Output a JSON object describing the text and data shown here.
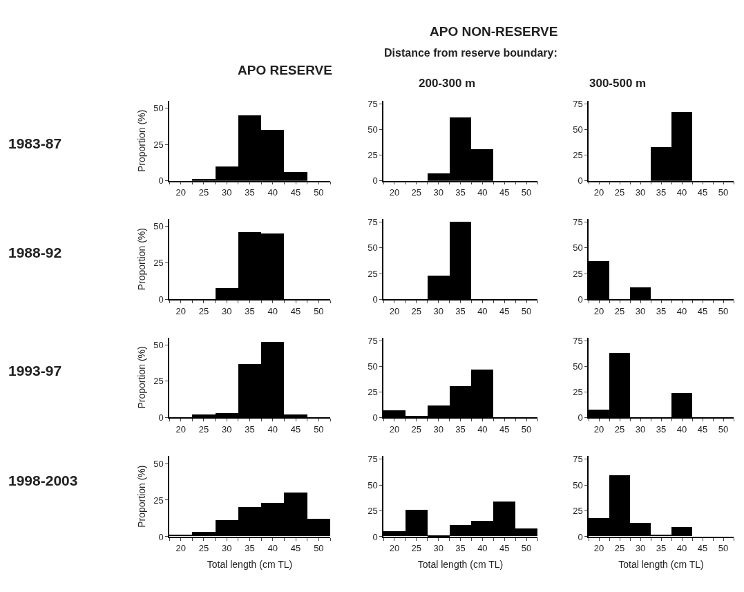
{
  "chart_data": [
    {
      "type": "histogram",
      "title": "APO RESERVE",
      "annotations": [
        "1983-87"
      ],
      "ylabel": "Proportion (%)",
      "bins": [
        17.5,
        22.5,
        27.5,
        32.5,
        37.5,
        42.5,
        47.5,
        52.5
      ],
      "values": [
        0,
        1,
        10,
        45,
        35,
        6,
        0
      ],
      "color": "#000000",
      "xlim": [
        17.5,
        52.5
      ],
      "xticks": [
        {
          "value": 17.5,
          "label": null
        },
        20,
        {
          "value": 22.5,
          "label": null
        },
        25,
        {
          "value": 27.5,
          "label": null
        },
        30,
        {
          "value": 32.5,
          "label": null
        },
        35,
        {
          "value": 37.5,
          "label": null
        },
        40,
        {
          "value": 42.5,
          "label": null
        },
        45,
        {
          "value": 47.5,
          "label": null
        },
        50,
        {
          "value": 52.5,
          "label": null
        }
      ],
      "ylim": [
        0,
        55
      ],
      "yticks": [
        0,
        25,
        50
      ]
    },
    {
      "type": "histogram",
      "title": "APO NON-RESERVE",
      "subtitle": "Distance from reserve boundary:",
      "annotations": [
        "200-300 m"
      ],
      "bins": [
        17.5,
        22.5,
        27.5,
        32.5,
        37.5,
        42.5,
        47.5,
        52.5
      ],
      "values": [
        0,
        0,
        7,
        62,
        31,
        0,
        0
      ],
      "color": "#000000",
      "xlim": [
        17.5,
        52.5
      ],
      "xticks": [
        {
          "value": 17.5,
          "label": null
        },
        20,
        {
          "value": 22.5,
          "label": null
        },
        25,
        {
          "value": 27.5,
          "label": null
        },
        30,
        {
          "value": 32.5,
          "label": null
        },
        35,
        {
          "value": 37.5,
          "label": null
        },
        40,
        {
          "value": 42.5,
          "label": null
        },
        45,
        {
          "value": 47.5,
          "label": null
        },
        50,
        {
          "value": 52.5,
          "label": null
        }
      ],
      "ylim": [
        0,
        78
      ],
      "yticks": [
        0,
        25,
        50,
        75
      ]
    },
    {
      "type": "histogram",
      "annotations": [
        "300-500 m"
      ],
      "bins": [
        17.5,
        22.5,
        27.5,
        32.5,
        37.5,
        42.5,
        47.5,
        52.5
      ],
      "values": [
        0,
        0,
        0,
        33,
        67,
        0,
        0
      ],
      "color": "#000000",
      "xlim": [
        17.5,
        52.5
      ],
      "xticks": [
        {
          "value": 17.5,
          "label": null
        },
        20,
        {
          "value": 22.5,
          "label": null
        },
        25,
        {
          "value": 27.5,
          "label": null
        },
        30,
        {
          "value": 32.5,
          "label": null
        },
        35,
        {
          "value": 37.5,
          "label": null
        },
        40,
        {
          "value": 42.5,
          "label": null
        },
        45,
        {
          "value": 47.5,
          "label": null
        },
        50,
        {
          "value": 52.5,
          "label": null
        }
      ],
      "ylim": [
        0,
        78
      ],
      "yticks": [
        0,
        25,
        50,
        75
      ]
    },
    {
      "type": "histogram",
      "annotations": [
        "1988-92"
      ],
      "ylabel": "Proportion (%)",
      "bins": [
        17.5,
        22.5,
        27.5,
        32.5,
        37.5,
        42.5,
        47.5,
        52.5
      ],
      "values": [
        0,
        0,
        8,
        46,
        45,
        0,
        0
      ],
      "color": "#000000",
      "xlim": [
        17.5,
        52.5
      ],
      "xticks": [
        {
          "value": 17.5,
          "label": null
        },
        20,
        {
          "value": 22.5,
          "label": null
        },
        25,
        {
          "value": 27.5,
          "label": null
        },
        30,
        {
          "value": 32.5,
          "label": null
        },
        35,
        {
          "value": 37.5,
          "label": null
        },
        40,
        {
          "value": 42.5,
          "label": null
        },
        45,
        {
          "value": 47.5,
          "label": null
        },
        50,
        {
          "value": 52.5,
          "label": null
        }
      ],
      "ylim": [
        0,
        55
      ],
      "yticks": [
        0,
        25,
        50
      ]
    },
    {
      "type": "histogram",
      "bins": [
        17.5,
        22.5,
        27.5,
        32.5,
        37.5,
        42.5,
        47.5,
        52.5
      ],
      "values": [
        0,
        0,
        23,
        75,
        0,
        0,
        0
      ],
      "color": "#000000",
      "xlim": [
        17.5,
        52.5
      ],
      "xticks": [
        {
          "value": 17.5,
          "label": null
        },
        20,
        {
          "value": 22.5,
          "label": null
        },
        25,
        {
          "value": 27.5,
          "label": null
        },
        30,
        {
          "value": 32.5,
          "label": null
        },
        35,
        {
          "value": 37.5,
          "label": null
        },
        40,
        {
          "value": 42.5,
          "label": null
        },
        45,
        {
          "value": 47.5,
          "label": null
        },
        50,
        {
          "value": 52.5,
          "label": null
        }
      ],
      "ylim": [
        0,
        78
      ],
      "yticks": [
        0,
        25,
        50,
        75
      ]
    },
    {
      "type": "histogram",
      "bins": [
        17.5,
        22.5,
        27.5,
        32.5,
        37.5,
        42.5,
        47.5,
        52.5
      ],
      "values": [
        37,
        0,
        12,
        0,
        0,
        0,
        0
      ],
      "color": "#000000",
      "xlim": [
        17.5,
        52.5
      ],
      "xticks": [
        {
          "value": 17.5,
          "label": null
        },
        20,
        {
          "value": 22.5,
          "label": null
        },
        25,
        {
          "value": 27.5,
          "label": null
        },
        30,
        {
          "value": 32.5,
          "label": null
        },
        35,
        {
          "value": 37.5,
          "label": null
        },
        40,
        {
          "value": 42.5,
          "label": null
        },
        45,
        {
          "value": 47.5,
          "label": null
        },
        50,
        {
          "value": 52.5,
          "label": null
        }
      ],
      "ylim": [
        0,
        78
      ],
      "yticks": [
        0,
        25,
        50,
        75
      ]
    },
    {
      "type": "histogram",
      "annotations": [
        "1993-97"
      ],
      "ylabel": "Proportion (%)",
      "bins": [
        17.5,
        22.5,
        27.5,
        32.5,
        37.5,
        42.5,
        47.5,
        52.5
      ],
      "values": [
        0,
        2,
        3,
        37,
        52,
        2,
        0
      ],
      "color": "#000000",
      "xlim": [
        17.5,
        52.5
      ],
      "xticks": [
        {
          "value": 17.5,
          "label": null
        },
        20,
        {
          "value": 22.5,
          "label": null
        },
        25,
        {
          "value": 27.5,
          "label": null
        },
        30,
        {
          "value": 32.5,
          "label": null
        },
        35,
        {
          "value": 37.5,
          "label": null
        },
        40,
        {
          "value": 42.5,
          "label": null
        },
        45,
        {
          "value": 47.5,
          "label": null
        },
        50,
        {
          "value": 52.5,
          "label": null
        }
      ],
      "ylim": [
        0,
        55
      ],
      "yticks": [
        0,
        25,
        50
      ]
    },
    {
      "type": "histogram",
      "bins": [
        17.5,
        22.5,
        27.5,
        32.5,
        37.5,
        42.5,
        47.5,
        52.5
      ],
      "values": [
        7,
        2,
        12,
        31,
        47,
        0,
        0
      ],
      "color": "#000000",
      "xlim": [
        17.5,
        52.5
      ],
      "xticks": [
        {
          "value": 17.5,
          "label": null
        },
        20,
        {
          "value": 22.5,
          "label": null
        },
        25,
        {
          "value": 27.5,
          "label": null
        },
        30,
        {
          "value": 32.5,
          "label": null
        },
        35,
        {
          "value": 37.5,
          "label": null
        },
        40,
        {
          "value": 42.5,
          "label": null
        },
        45,
        {
          "value": 47.5,
          "label": null
        },
        50,
        {
          "value": 52.5,
          "label": null
        }
      ],
      "ylim": [
        0,
        78
      ],
      "yticks": [
        0,
        25,
        50,
        75
      ]
    },
    {
      "type": "histogram",
      "bins": [
        17.5,
        22.5,
        27.5,
        32.5,
        37.5,
        42.5,
        47.5,
        52.5
      ],
      "values": [
        8,
        63,
        0,
        0,
        24,
        0,
        0
      ],
      "color": "#000000",
      "xlim": [
        17.5,
        52.5
      ],
      "xticks": [
        {
          "value": 17.5,
          "label": null
        },
        20,
        {
          "value": 22.5,
          "label": null
        },
        25,
        {
          "value": 27.5,
          "label": null
        },
        30,
        {
          "value": 32.5,
          "label": null
        },
        35,
        {
          "value": 37.5,
          "label": null
        },
        40,
        {
          "value": 42.5,
          "label": null
        },
        45,
        {
          "value": 47.5,
          "label": null
        },
        50,
        {
          "value": 52.5,
          "label": null
        }
      ],
      "ylim": [
        0,
        78
      ],
      "yticks": [
        0,
        25,
        50,
        75
      ]
    },
    {
      "type": "histogram",
      "annotations": [
        "1998-2003"
      ],
      "ylabel": "Proportion (%)",
      "xlabel": "Total length (cm TL)",
      "bins": [
        17.5,
        22.5,
        27.5,
        32.5,
        37.5,
        42.5,
        47.5,
        52.5
      ],
      "values": [
        1,
        3,
        11,
        20,
        23,
        30,
        12
      ],
      "color": "#000000",
      "xlim": [
        17.5,
        52.5
      ],
      "xticks": [
        {
          "value": 17.5,
          "label": null
        },
        20,
        {
          "value": 22.5,
          "label": null
        },
        25,
        {
          "value": 27.5,
          "label": null
        },
        30,
        {
          "value": 32.5,
          "label": null
        },
        35,
        {
          "value": 37.5,
          "label": null
        },
        40,
        {
          "value": 42.5,
          "label": null
        },
        45,
        {
          "value": 47.5,
          "label": null
        },
        50,
        {
          "value": 52.5,
          "label": null
        }
      ],
      "ylim": [
        0,
        55
      ],
      "yticks": [
        0,
        25,
        50
      ]
    },
    {
      "type": "histogram",
      "xlabel": "Total length (cm TL)",
      "bins": [
        17.5,
        22.5,
        27.5,
        32.5,
        37.5,
        42.5,
        47.5,
        52.5
      ],
      "values": [
        5,
        26,
        1,
        11,
        15,
        34,
        8
      ],
      "color": "#000000",
      "xlim": [
        17.5,
        52.5
      ],
      "xticks": [
        {
          "value": 17.5,
          "label": null
        },
        20,
        {
          "value": 22.5,
          "label": null
        },
        25,
        {
          "value": 27.5,
          "label": null
        },
        30,
        {
          "value": 32.5,
          "label": null
        },
        35,
        {
          "value": 37.5,
          "label": null
        },
        40,
        {
          "value": 42.5,
          "label": null
        },
        45,
        {
          "value": 47.5,
          "label": null
        },
        50,
        {
          "value": 52.5,
          "label": null
        }
      ],
      "ylim": [
        0,
        78
      ],
      "yticks": [
        0,
        25,
        50,
        75
      ]
    },
    {
      "type": "histogram",
      "xlabel": "Total length (cm TL)",
      "bins": [
        17.5,
        22.5,
        27.5,
        32.5,
        37.5,
        42.5,
        47.5,
        52.5
      ],
      "values": [
        18,
        59,
        13,
        2,
        9,
        0,
        0
      ],
      "color": "#000000",
      "xlim": [
        17.5,
        52.5
      ],
      "xticks": [
        {
          "value": 17.5,
          "label": null
        },
        20,
        {
          "value": 22.5,
          "label": null
        },
        25,
        {
          "value": 27.5,
          "label": null
        },
        30,
        {
          "value": 32.5,
          "label": null
        },
        35,
        {
          "value": 37.5,
          "label": null
        },
        40,
        {
          "value": 42.5,
          "label": null
        },
        45,
        {
          "value": 47.5,
          "label": null
        },
        50,
        {
          "value": 52.5,
          "label": null
        }
      ],
      "ylim": [
        0,
        78
      ],
      "yticks": [
        0,
        25,
        50,
        75
      ]
    }
  ]
}
